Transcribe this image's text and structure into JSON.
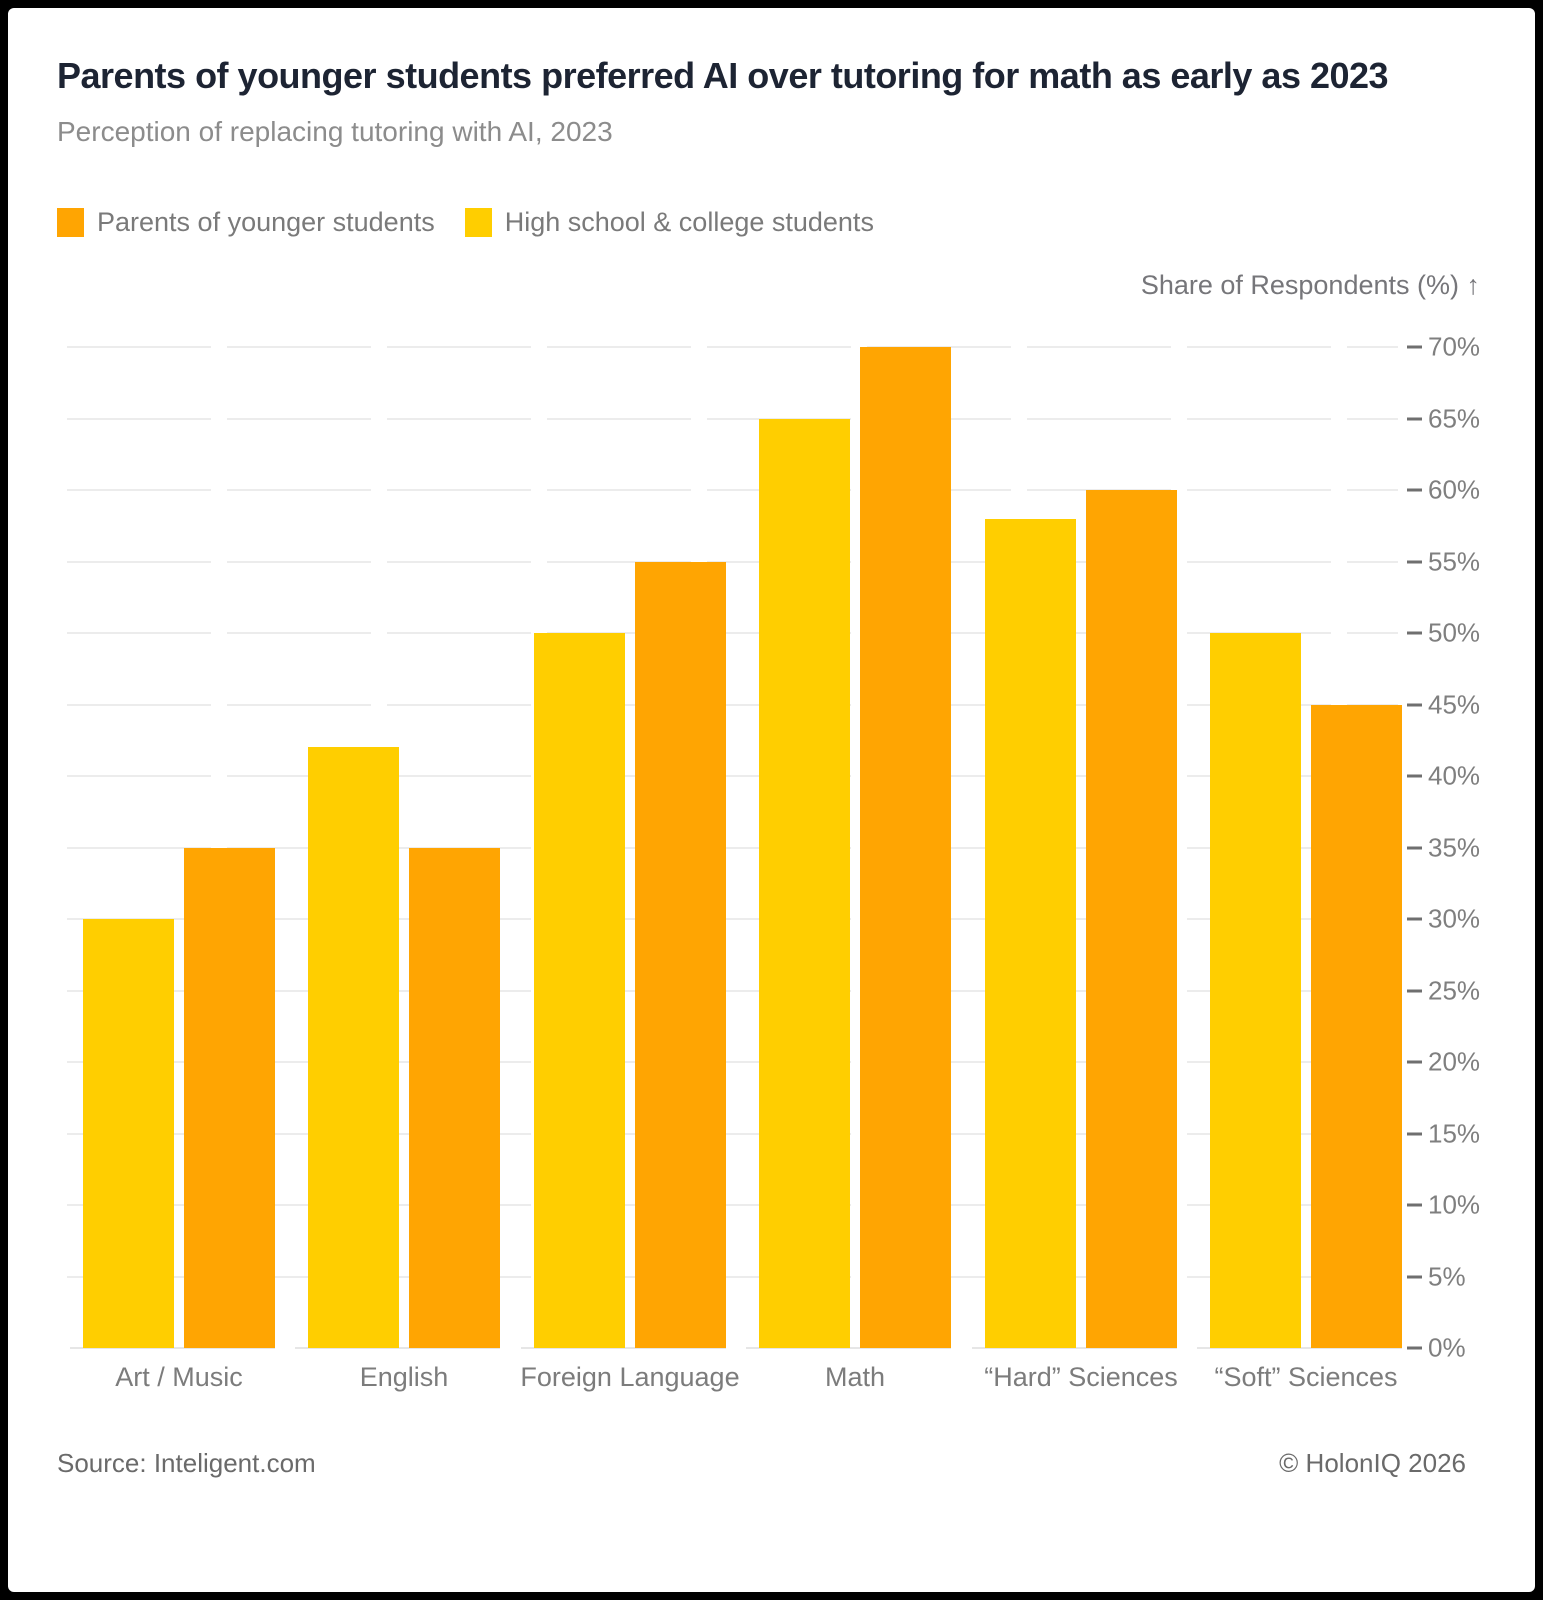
{
  "header": {
    "title": "Parents of younger students preferred AI over tutoring for math as early as 2023",
    "subtitle": "Perception of replacing tutoring with AI, 2023"
  },
  "legend": {
    "items": [
      {
        "label": "Parents of younger students",
        "color": "#FFA502"
      },
      {
        "label": "High school & college students",
        "color": "#FFCE00"
      }
    ]
  },
  "axis": {
    "title": "Share of Respondents (%) ↑",
    "ticks": [
      "0%",
      "5%",
      "10%",
      "15%",
      "20%",
      "25%",
      "30%",
      "35%",
      "40%",
      "45%",
      "50%",
      "55%",
      "60%",
      "65%",
      "70%"
    ],
    "min": 0,
    "max": 70,
    "step": 5
  },
  "chart_data": {
    "type": "bar",
    "title": "Parents of younger students preferred AI over tutoring for math as early as 2023",
    "subtitle": "Perception of replacing tutoring with AI, 2023",
    "categories": [
      "Art / Music",
      "English",
      "Foreign Language",
      "Math",
      "“Hard” Sciences",
      "“Soft” Sciences"
    ],
    "series": [
      {
        "name": "High school & college students",
        "color": "#FFCE00",
        "values": [
          30,
          42,
          50,
          65,
          58,
          50
        ]
      },
      {
        "name": "Parents of younger students",
        "color": "#FFA502",
        "values": [
          35,
          35,
          55,
          70,
          60,
          45
        ]
      }
    ],
    "xlabel": "",
    "ylabel": "Share of Respondents (%)",
    "ylim": [
      0,
      70
    ],
    "grid": true,
    "legend_position": "top-left"
  },
  "footer": {
    "source": "Source: Inteligent.com",
    "copyright": "© HolonIQ 2026"
  }
}
